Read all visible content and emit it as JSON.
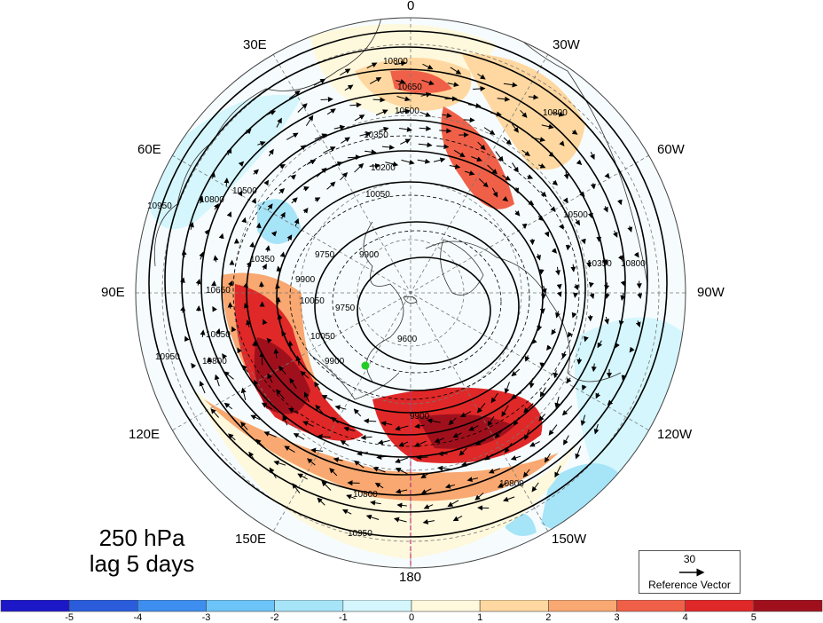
{
  "panel": {
    "title_line1": "250 hPa",
    "title_line2": "lag 5 days"
  },
  "longitude_labels": {
    "top": "0",
    "bottom": "180",
    "e30": "30E",
    "w30": "30W",
    "e60": "60E",
    "w60": "60W",
    "e90": "90E",
    "w90": "90W",
    "e120": "120E",
    "w120": "120W",
    "e150": "150E",
    "w150": "150W"
  },
  "contour_levels": [
    "9600",
    "9750",
    "9900",
    "10050",
    "10200",
    "10350",
    "10500",
    "10650",
    "10800",
    "10950"
  ],
  "contour_labels": [
    "10800",
    "10650",
    "10500",
    "10350",
    "10200",
    "10050",
    "9900",
    "9750",
    "9600",
    "9900",
    "10950",
    "10800",
    "10650",
    "10350",
    "10800",
    "10950",
    "10800",
    "10950",
    "10050",
    "10500",
    "10650",
    "10800",
    "10350",
    "10500",
    "10800",
    "9900",
    "10050",
    "9900",
    "9750",
    "10800"
  ],
  "reference_vector": {
    "magnitude": "30",
    "label": "Reference Vector"
  },
  "marker": {
    "color": "#22cc22"
  },
  "colorbar": {
    "colors": [
      "#1c18c8",
      "#2a5cdc",
      "#3e8ef0",
      "#6cc4f8",
      "#a6e4f8",
      "#d4f6fc",
      "#fef8dc",
      "#fed8a0",
      "#f8a870",
      "#f06048",
      "#e02828",
      "#a0101c"
    ],
    "ticks": [
      "-5",
      "-4",
      "-3",
      "-2",
      "-1",
      "0",
      "1",
      "2",
      "3",
      "4",
      "5"
    ]
  }
}
